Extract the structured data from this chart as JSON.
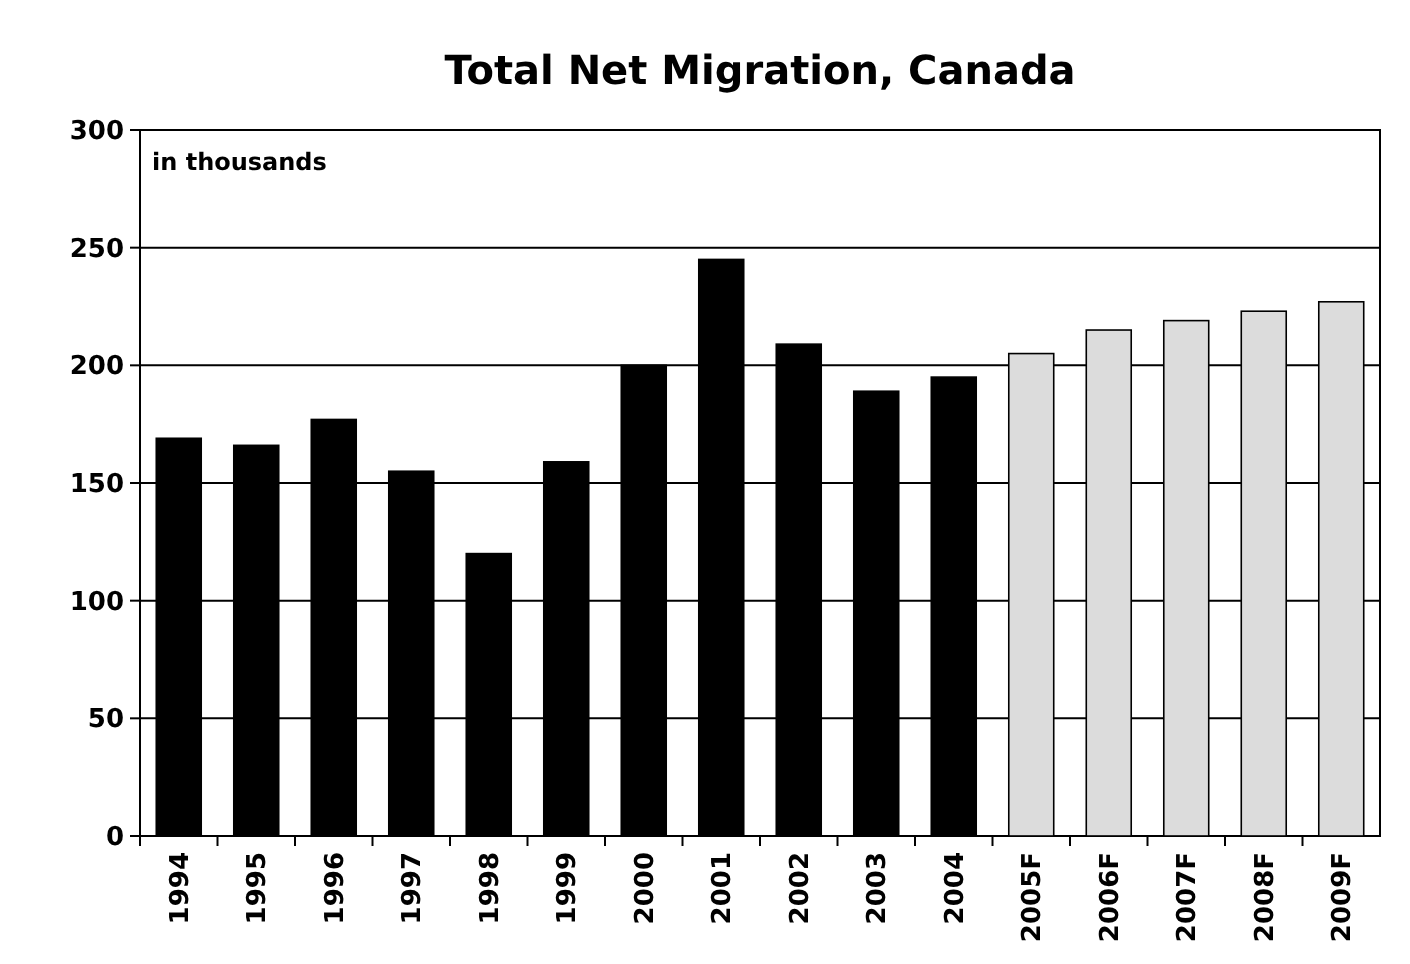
{
  "chart_data": {
    "type": "bar",
    "title": "Total Net Migration, Canada",
    "categories": [
      "1994",
      "1995",
      "1996",
      "1997",
      "1998",
      "1999",
      "2000",
      "2001",
      "2002",
      "2003",
      "2004",
      "2005F",
      "2006F",
      "2007F",
      "2008F",
      "2009F"
    ],
    "values": [
      169,
      166,
      177,
      155,
      120,
      159,
      200,
      245,
      209,
      189,
      195,
      205,
      215,
      219,
      223,
      227
    ],
    "colors": [
      "#000000",
      "#000000",
      "#000000",
      "#000000",
      "#000000",
      "#000000",
      "#000000",
      "#000000",
      "#000000",
      "#000000",
      "#000000",
      "#dcdcdc",
      "#dcdcdc",
      "#dcdcdc",
      "#dcdcdc",
      "#dcdcdc"
    ],
    "ylim": [
      0,
      300
    ],
    "yticks": [
      0,
      50,
      100,
      150,
      200,
      250,
      300
    ],
    "grid": "y",
    "annotations": [
      "in thousands"
    ]
  }
}
